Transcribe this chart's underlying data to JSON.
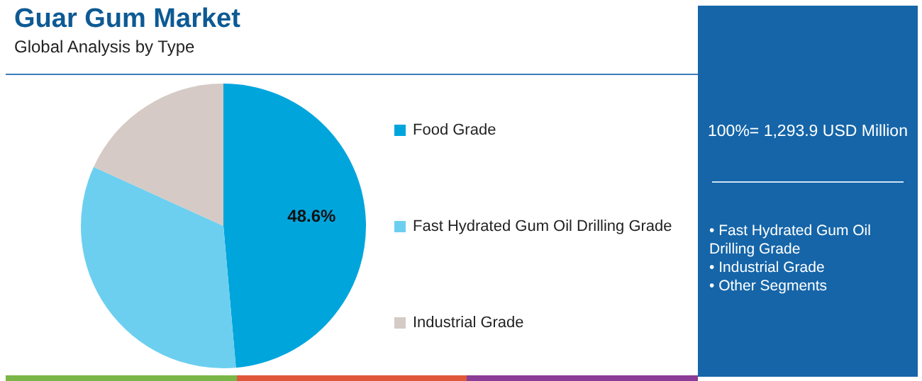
{
  "chart_data": {
    "type": "pie",
    "title": "Guar Gum Market",
    "subtitle": "Global Analysis by Type",
    "categories": [
      "Food Grade",
      "Fast Hydrated Gum Oil Drilling Grade",
      "Industrial Grade"
    ],
    "values": [
      48.6,
      33.2,
      18.2
    ],
    "value_labels": [
      "48.6%",
      null,
      null
    ],
    "colors": [
      "#00a5dc",
      "#6ccfef",
      "#d5cac5"
    ],
    "legend": "right",
    "annotations": [
      "100%= 1,293.9 USD Million",
      "• Fast Hydrated Gum Oil Drilling Grade",
      "• Industrial Grade",
      "• Other Segments"
    ]
  }
}
